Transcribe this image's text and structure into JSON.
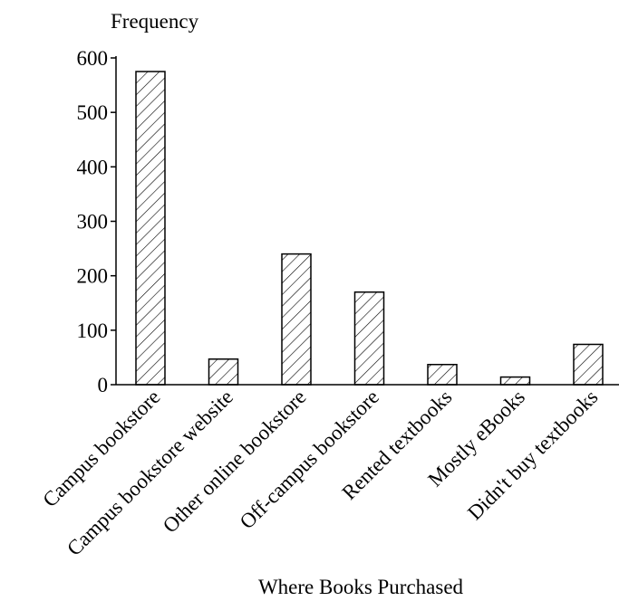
{
  "chart_data": {
    "type": "bar",
    "ylabel": "Frequency",
    "xlabel": "Where Books Purchased",
    "categories": [
      "Campus bookstore",
      "Campus bookstore website",
      "Other online bookstore",
      "Off-campus bookstore",
      "Rented textbooks",
      "Mostly eBooks",
      "Didn't buy textbooks"
    ],
    "values": [
      575,
      47,
      240,
      170,
      37,
      14,
      74
    ],
    "ylim": [
      0,
      600
    ],
    "yticks": [
      "0",
      "100",
      "200",
      "300",
      "400",
      "500",
      "600"
    ],
    "grid": false,
    "legend": "none",
    "bar_fill": "hatched",
    "colors": {
      "stroke": "#000000",
      "background": "#ffffff"
    }
  }
}
